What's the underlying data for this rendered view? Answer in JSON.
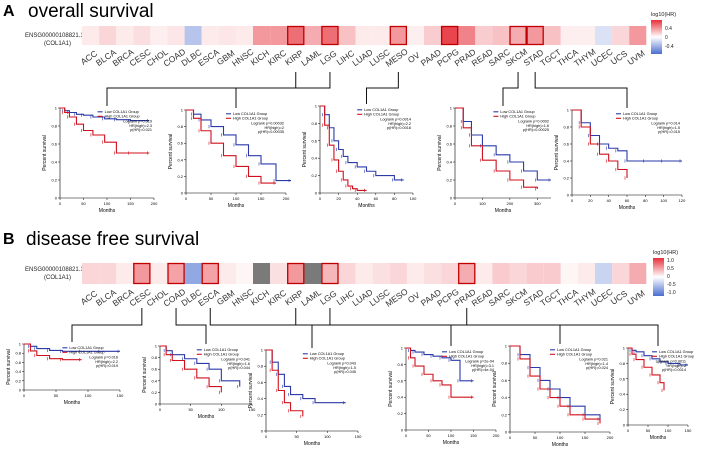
{
  "panels": [
    {
      "letter": "A",
      "title": "overall survival",
      "gene_id": "ENSG00000108821.13",
      "gene_name": "(COL1A1)",
      "colorbar": {
        "title": "log10(HR)",
        "ticks": [
          "0.4",
          "0",
          "-0.4"
        ]
      },
      "cancers": [
        "ACC",
        "BLCA",
        "BRCA",
        "CESC",
        "CHOL",
        "COAD",
        "DLBC",
        "ESCA",
        "GBM",
        "HNSC",
        "KICH",
        "KIRC",
        "KIRP",
        "LAML",
        "LGG",
        "LIHC",
        "LUAD",
        "LUSC",
        "MESO",
        "OV",
        "PAAD",
        "PCPG",
        "PRAD",
        "READ",
        "SARC",
        "SKCM",
        "STAD",
        "TGCT",
        "THCA",
        "THYM",
        "UCEC",
        "UCS",
        "UVM"
      ],
      "log_hr": [
        0.05,
        0.1,
        0.05,
        0.08,
        0.04,
        0.06,
        -0.2,
        0.05,
        0.06,
        0.05,
        0.25,
        0.25,
        0.35,
        0.2,
        0.35,
        0.15,
        0.05,
        0.05,
        0.25,
        0.04,
        0.12,
        0.45,
        0.3,
        0.12,
        0.15,
        0.2,
        0.25,
        0.15,
        0.04,
        0.04,
        -0.1,
        0.1,
        0.25
      ],
      "highlighted": [
        "KIRP",
        "LGG",
        "MESO",
        "PCPG",
        "SKCM",
        "STAD"
      ]
    },
    {
      "letter": "B",
      "title": "disease free survival",
      "gene_id": "ENSG00000108821.13",
      "gene_name": "(COL1A1)",
      "colorbar": {
        "title": "log10(HR)",
        "ticks": [
          "1.0",
          "0.5",
          "0",
          "-0.5",
          "-1.0"
        ]
      },
      "cancers": [
        "ACC",
        "BLCA",
        "BRCA",
        "CESC",
        "CHOL",
        "COAD",
        "DLBC",
        "ESCA",
        "GBM",
        "HNSC",
        "KICH",
        "KIRC",
        "KIRP",
        "LAML",
        "LGG",
        "LIHC",
        "LUAD",
        "LUSC",
        "MESO",
        "OV",
        "PAAD",
        "PCPG",
        "PRAD",
        "READ",
        "SARC",
        "SKCM",
        "STAD",
        "TGCT",
        "THCA",
        "THYM",
        "UCEC",
        "UCS",
        "UVM"
      ],
      "log_hr": [
        0.2,
        0.2,
        0.1,
        0.5,
        0.1,
        0.45,
        -0.6,
        0.45,
        0.1,
        0.05,
        "NA",
        0.15,
        0.5,
        "NA",
        0.35,
        0.2,
        0.1,
        0.15,
        0.2,
        0.1,
        0.15,
        0.2,
        0.4,
        0.1,
        0.25,
        0.2,
        0.25,
        0.25,
        0.05,
        0.1,
        -0.3,
        0.2,
        0.4
      ],
      "highlighted": [
        "CESC",
        "COAD",
        "ESCA",
        "KIRP",
        "LGG",
        "PRAD"
      ]
    }
  ],
  "km_legend": {
    "low": "Low COL1A1 Group",
    "high": "High COL1A1 Group"
  },
  "km_axes": {
    "xlabel": "Months",
    "ylabel": "Percent survival"
  },
  "colors": {
    "low": "#2b3aa8",
    "high": "#d0101c",
    "highlight_box": "#c00000",
    "na": "#7a7a7a"
  },
  "chart_data": [
    {
      "type": "line",
      "panel": "A",
      "cancer": "KIRP",
      "xmax": 200,
      "xticks": [
        0,
        50,
        100,
        150,
        200
      ],
      "yticks": [
        0,
        0.2,
        0.4,
        0.6,
        0.8,
        1.0
      ],
      "stats": [
        "Logrank p=0.019",
        "HR(high)=2.3",
        "p(HR)=0.021"
      ],
      "series": [
        {
          "name": "Low COL1A1 Group",
          "x": [
            0,
            10,
            20,
            35,
            50,
            70,
            95,
            120,
            150,
            190
          ],
          "y": [
            1,
            0.97,
            0.95,
            0.93,
            0.92,
            0.9,
            0.88,
            0.87,
            0.86,
            0.86
          ]
        },
        {
          "name": "High COL1A1 Group",
          "x": [
            0,
            10,
            20,
            35,
            50,
            70,
            95,
            120,
            150,
            190
          ],
          "y": [
            1,
            0.95,
            0.9,
            0.82,
            0.75,
            0.7,
            0.62,
            0.5,
            0.5,
            0.5
          ]
        }
      ]
    },
    {
      "type": "line",
      "panel": "A",
      "cancer": "LGG",
      "xmax": 200,
      "xticks": [
        0,
        50,
        100,
        150,
        200
      ],
      "yticks": [
        0,
        0.2,
        0.4,
        0.6,
        0.8,
        1.0
      ],
      "stats": [
        "Logrank p=0.00032",
        "HR(high)=2",
        "p(HR)=0.00035"
      ],
      "series": [
        {
          "name": "Low COL1A1 Group",
          "x": [
            0,
            15,
            30,
            50,
            75,
            100,
            125,
            150,
            180,
            210
          ],
          "y": [
            1,
            0.95,
            0.88,
            0.8,
            0.7,
            0.58,
            0.45,
            0.35,
            0.15,
            0.15
          ]
        },
        {
          "name": "High COL1A1 Group",
          "x": [
            0,
            15,
            30,
            50,
            75,
            100,
            125,
            150,
            180
          ],
          "y": [
            1,
            0.9,
            0.75,
            0.6,
            0.45,
            0.32,
            0.2,
            0.12,
            0.12
          ]
        }
      ]
    },
    {
      "type": "line",
      "panel": "A",
      "cancer": "MESO",
      "xmax": 100,
      "xticks": [
        0,
        20,
        40,
        60,
        80,
        100
      ],
      "yticks": [
        0,
        0.2,
        0.4,
        0.6,
        0.8,
        1.0
      ],
      "stats": [
        "Logrank p=0.0014",
        "HR(high)=2.2",
        "p(HR)=0.0016"
      ],
      "series": [
        {
          "name": "Low COL1A1 Group",
          "x": [
            0,
            5,
            10,
            15,
            20,
            25,
            30,
            40,
            50,
            60,
            80,
            90
          ],
          "y": [
            1,
            0.9,
            0.75,
            0.6,
            0.5,
            0.42,
            0.35,
            0.3,
            0.25,
            0.2,
            0.15,
            0.15
          ]
        },
        {
          "name": "High COL1A1 Group",
          "x": [
            0,
            5,
            10,
            15,
            20,
            25,
            30,
            35,
            40,
            50
          ],
          "y": [
            1,
            0.78,
            0.55,
            0.38,
            0.25,
            0.15,
            0.08,
            0.05,
            0.03,
            0.03
          ]
        }
      ]
    },
    {
      "type": "line",
      "panel": "A",
      "cancer": "SKCM",
      "xmax": 350,
      "xticks": [
        0,
        100,
        200,
        300
      ],
      "yticks": [
        0,
        0.2,
        0.4,
        0.6,
        0.8,
        1.0
      ],
      "stats": [
        "Logrank p=0.0002",
        "HR(high)=1.6",
        "p(HR)=0.00025"
      ],
      "series": [
        {
          "name": "Low COL1A1 Group",
          "x": [
            0,
            30,
            60,
            100,
            150,
            200,
            250,
            300,
            350
          ],
          "y": [
            1,
            0.85,
            0.7,
            0.58,
            0.48,
            0.4,
            0.3,
            0.2,
            0.2
          ]
        },
        {
          "name": "High COL1A1 Group",
          "x": [
            0,
            30,
            60,
            100,
            150,
            200,
            250,
            300
          ],
          "y": [
            1,
            0.78,
            0.58,
            0.42,
            0.3,
            0.2,
            0.12,
            0.1
          ]
        }
      ]
    },
    {
      "type": "line",
      "panel": "A",
      "cancer": "STAD",
      "xmax": 120,
      "xticks": [
        0,
        20,
        40,
        60,
        80,
        100,
        120
      ],
      "yticks": [
        0,
        0.2,
        0.4,
        0.6,
        0.8,
        1.0
      ],
      "stats": [
        "Logrank p=0.014",
        "HR(high)=1.5",
        "p(HR)=0.015"
      ],
      "series": [
        {
          "name": "Low COL1A1 Group",
          "x": [
            0,
            10,
            20,
            30,
            40,
            50,
            60,
            80,
            100,
            120
          ],
          "y": [
            1,
            0.85,
            0.7,
            0.6,
            0.55,
            0.52,
            0.4,
            0.4,
            0.4,
            0.4
          ]
        },
        {
          "name": "High COL1A1 Group",
          "x": [
            0,
            10,
            20,
            30,
            40,
            50,
            60
          ],
          "y": [
            1,
            0.8,
            0.6,
            0.48,
            0.4,
            0.3,
            0.2
          ]
        }
      ]
    },
    {
      "type": "line",
      "panel": "B",
      "cancer": "CESC",
      "xmax": 150,
      "xticks": [
        0,
        50,
        100,
        150
      ],
      "yticks": [
        0,
        0.2,
        0.4,
        0.6,
        0.8,
        1.0
      ],
      "stats": [
        "Logrank p=0.016",
        "HR(high)=2.2",
        "p(HR)=0.019"
      ],
      "series": [
        {
          "name": "Low COL1A1 Group",
          "x": [
            0,
            10,
            20,
            40,
            60,
            90,
            120,
            150
          ],
          "y": [
            1,
            0.95,
            0.9,
            0.86,
            0.84,
            0.84,
            0.84,
            0.84
          ]
        },
        {
          "name": "High COL1A1 Group",
          "x": [
            0,
            10,
            20,
            40,
            60,
            90
          ],
          "y": [
            1,
            0.85,
            0.75,
            0.68,
            0.66,
            0.66
          ]
        }
      ]
    },
    {
      "type": "line",
      "panel": "B",
      "cancer": "COAD",
      "xmax": 150,
      "xticks": [
        0,
        50,
        100,
        150
      ],
      "yticks": [
        0,
        0.2,
        0.4,
        0.6,
        0.8,
        1.0
      ],
      "stats": [
        "Logrank p=0.041",
        "HR(high)=1.6",
        "p(HR)=0.044"
      ],
      "series": [
        {
          "name": "Low COL1A1 Group",
          "x": [
            0,
            10,
            20,
            40,
            60,
            80,
            100,
            130
          ],
          "y": [
            1,
            0.92,
            0.85,
            0.78,
            0.7,
            0.6,
            0.4,
            0.3
          ]
        },
        {
          "name": "High COL1A1 Group",
          "x": [
            0,
            10,
            20,
            40,
            60,
            80,
            100
          ],
          "y": [
            1,
            0.85,
            0.75,
            0.6,
            0.45,
            0.3,
            0.2
          ]
        }
      ]
    },
    {
      "type": "line",
      "panel": "B",
      "cancer": "ESCA",
      "xmax": 150,
      "xticks": [
        0,
        50,
        100,
        150
      ],
      "yticks": [
        0,
        0.2,
        0.4,
        0.6,
        0.8,
        1.0
      ],
      "stats": [
        "Logrank p=0.043",
        "HR(high)=1.5",
        "p(HR)=0.045"
      ],
      "series": [
        {
          "name": "Low COL1A1 Group",
          "x": [
            0,
            10,
            20,
            30,
            40,
            60,
            80,
            130
          ],
          "y": [
            1,
            0.85,
            0.7,
            0.55,
            0.45,
            0.4,
            0.35,
            0.35
          ]
        },
        {
          "name": "High COL1A1 Group",
          "x": [
            0,
            10,
            20,
            30,
            40,
            60
          ],
          "y": [
            1,
            0.75,
            0.5,
            0.35,
            0.25,
            0.18
          ]
        }
      ]
    },
    {
      "type": "line",
      "panel": "B",
      "cancer": "KIRP",
      "xmax": 200,
      "xticks": [
        0,
        50,
        100,
        150,
        200
      ],
      "yticks": [
        0,
        0.2,
        0.4,
        0.6,
        0.8,
        1.0
      ],
      "stats": [
        "Logrank p=2e-04",
        "HR(high)=3.1",
        "p(HR)=4e-04"
      ],
      "series": [
        {
          "name": "Low COL1A1 Group",
          "x": [
            0,
            10,
            20,
            40,
            60,
            80,
            100,
            120,
            150
          ],
          "y": [
            1,
            0.97,
            0.95,
            0.92,
            0.9,
            0.88,
            0.85,
            0.6,
            0.6
          ]
        },
        {
          "name": "High COL1A1 Group",
          "x": [
            0,
            10,
            20,
            40,
            60,
            80,
            100,
            150
          ],
          "y": [
            1,
            0.88,
            0.78,
            0.68,
            0.6,
            0.55,
            0.4,
            0.4
          ]
        }
      ]
    },
    {
      "type": "line",
      "panel": "B",
      "cancer": "LGG",
      "xmax": 200,
      "xticks": [
        0,
        50,
        100,
        150,
        200
      ],
      "yticks": [
        0,
        0.2,
        0.4,
        0.6,
        0.8,
        1.0
      ],
      "stats": [
        "Logrank p=0.021",
        "HR(high)=1.4",
        "p(HR)=0.024"
      ],
      "series": [
        {
          "name": "Low COL1A1 Group",
          "x": [
            0,
            20,
            40,
            60,
            80,
            100,
            120,
            150,
            180
          ],
          "y": [
            1,
            0.9,
            0.75,
            0.6,
            0.5,
            0.4,
            0.3,
            0.2,
            0.15
          ]
        },
        {
          "name": "High COL1A1 Group",
          "x": [
            0,
            20,
            40,
            60,
            80,
            100,
            120,
            150,
            180
          ],
          "y": [
            1,
            0.85,
            0.65,
            0.5,
            0.4,
            0.3,
            0.2,
            0.15,
            0.1
          ]
        }
      ]
    },
    {
      "type": "line",
      "panel": "B",
      "cancer": "PRAD",
      "xmax": 150,
      "xticks": [
        0,
        50,
        100,
        150
      ],
      "yticks": [
        0,
        0.2,
        0.4,
        0.6,
        0.8,
        1.0
      ],
      "stats": [
        "Logrank p=0.0011",
        "HR(high)=2",
        "p(HR)=0.0014"
      ],
      "series": [
        {
          "name": "Low COL1A1 Group",
          "x": [
            0,
            10,
            20,
            40,
            60,
            80,
            100,
            130,
            150
          ],
          "y": [
            1,
            0.97,
            0.95,
            0.9,
            0.86,
            0.82,
            0.8,
            0.78,
            0.78
          ]
        },
        {
          "name": "High COL1A1 Group",
          "x": [
            0,
            10,
            20,
            40,
            60,
            80,
            90
          ],
          "y": [
            1,
            0.92,
            0.85,
            0.75,
            0.65,
            0.55,
            0.45
          ]
        }
      ]
    }
  ]
}
